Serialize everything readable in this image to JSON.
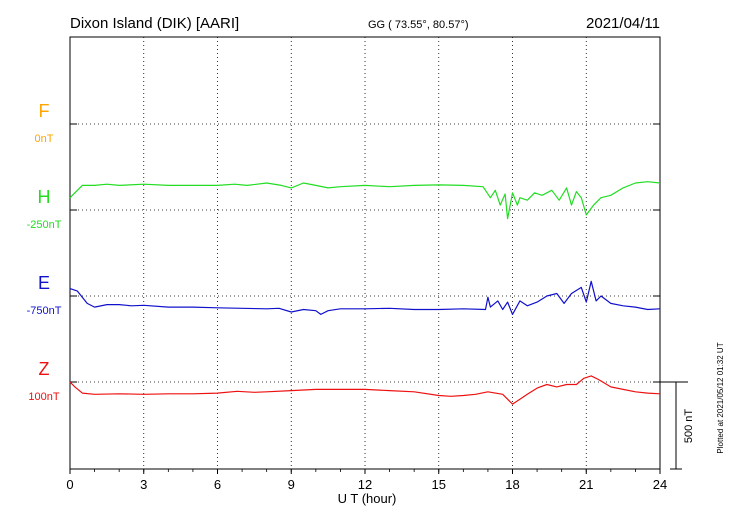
{
  "header": {
    "station": "Dixon Island (DIK)  [AARI]",
    "coords": "GG ( 73.55°,  80.57°)",
    "date": "2021/04/11"
  },
  "side_note": "Plotted at 2021/05/12 01:32 UT",
  "scale_label": "500 nT",
  "colors": {
    "F": "#ffa500",
    "H": "#22dd22",
    "E": "#1111cc",
    "Z": "#ee1111"
  },
  "chart_data": {
    "type": "line",
    "xlabel": "U T (hour)",
    "xlim": [
      0,
      24
    ],
    "x_ticks": [
      "0",
      "3",
      "6",
      "9",
      "12",
      "15",
      "18",
      "21",
      "24"
    ],
    "grid": true,
    "panel_spacing_nT": 350,
    "scale_bar_nT": 500,
    "panels": [
      {
        "name": "F",
        "offset_label": "0nT",
        "points": []
      },
      {
        "name": "H",
        "offset_label": "-250nT",
        "points": [
          [
            0,
            -300
          ],
          [
            0.5,
            -250
          ],
          [
            1,
            -250
          ],
          [
            1.5,
            -245
          ],
          [
            2,
            -250
          ],
          [
            3,
            -245
          ],
          [
            4,
            -250
          ],
          [
            5,
            -250
          ],
          [
            6,
            -250
          ],
          [
            6.7,
            -245
          ],
          [
            7.2,
            -250
          ],
          [
            8,
            -240
          ],
          [
            8.6,
            -250
          ],
          [
            9,
            -260
          ],
          [
            9.5,
            -240
          ],
          [
            10,
            -250
          ],
          [
            10.5,
            -260
          ],
          [
            11,
            -255
          ],
          [
            12,
            -250
          ],
          [
            13,
            -255
          ],
          [
            14,
            -250
          ],
          [
            15,
            -248
          ],
          [
            16,
            -250
          ],
          [
            16.8,
            -255
          ],
          [
            17.1,
            -300
          ],
          [
            17.3,
            -270
          ],
          [
            17.5,
            -330
          ],
          [
            17.7,
            -285
          ],
          [
            17.8,
            -385
          ],
          [
            18.0,
            -280
          ],
          [
            18.2,
            -330
          ],
          [
            18.3,
            -300
          ],
          [
            18.6,
            -310
          ],
          [
            18.9,
            -280
          ],
          [
            19.2,
            -290
          ],
          [
            19.6,
            -270
          ],
          [
            19.9,
            -310
          ],
          [
            20.2,
            -260
          ],
          [
            20.4,
            -330
          ],
          [
            20.6,
            -275
          ],
          [
            20.8,
            -300
          ],
          [
            21.0,
            -370
          ],
          [
            21.3,
            -330
          ],
          [
            21.6,
            -300
          ],
          [
            22,
            -290
          ],
          [
            22.5,
            -260
          ],
          [
            23,
            -240
          ],
          [
            23.5,
            -235
          ],
          [
            24,
            -240
          ]
        ]
      },
      {
        "name": "E",
        "offset_label": "-750nT",
        "points": [
          [
            0,
            -670
          ],
          [
            0.3,
            -680
          ],
          [
            0.7,
            -730
          ],
          [
            1,
            -745
          ],
          [
            1.5,
            -735
          ],
          [
            2,
            -735
          ],
          [
            2.5,
            -740
          ],
          [
            3,
            -738
          ],
          [
            4,
            -745
          ],
          [
            5,
            -745
          ],
          [
            6,
            -748
          ],
          [
            7,
            -750
          ],
          [
            8,
            -752
          ],
          [
            8.5,
            -750
          ],
          [
            9,
            -765
          ],
          [
            9.5,
            -755
          ],
          [
            10,
            -760
          ],
          [
            10.2,
            -775
          ],
          [
            10.5,
            -760
          ],
          [
            11,
            -752
          ],
          [
            12,
            -752
          ],
          [
            13,
            -750
          ],
          [
            14,
            -755
          ],
          [
            15,
            -755
          ],
          [
            16,
            -752
          ],
          [
            16.9,
            -755
          ],
          [
            17.0,
            -705
          ],
          [
            17.1,
            -745
          ],
          [
            17.4,
            -720
          ],
          [
            17.6,
            -755
          ],
          [
            17.8,
            -725
          ],
          [
            18.0,
            -775
          ],
          [
            18.3,
            -720
          ],
          [
            18.6,
            -740
          ],
          [
            19.0,
            -725
          ],
          [
            19.4,
            -700
          ],
          [
            19.8,
            -690
          ],
          [
            20.1,
            -730
          ],
          [
            20.4,
            -690
          ],
          [
            20.8,
            -665
          ],
          [
            21.0,
            -725
          ],
          [
            21.2,
            -640
          ],
          [
            21.4,
            -720
          ],
          [
            21.6,
            -700
          ],
          [
            22,
            -730
          ],
          [
            22.5,
            -740
          ],
          [
            23,
            -745
          ],
          [
            23.5,
            -755
          ],
          [
            24,
            -752
          ]
        ]
      },
      {
        "name": "Z",
        "offset_label": "100nT",
        "points": [
          [
            0,
            -1050
          ],
          [
            0.2,
            -1070
          ],
          [
            0.5,
            -1095
          ],
          [
            1,
            -1100
          ],
          [
            2,
            -1098
          ],
          [
            3,
            -1100
          ],
          [
            4,
            -1098
          ],
          [
            5,
            -1098
          ],
          [
            6,
            -1095
          ],
          [
            6.8,
            -1088
          ],
          [
            7.5,
            -1092
          ],
          [
            8,
            -1090
          ],
          [
            9,
            -1085
          ],
          [
            10,
            -1080
          ],
          [
            11,
            -1080
          ],
          [
            12,
            -1080
          ],
          [
            13,
            -1085
          ],
          [
            14,
            -1090
          ],
          [
            15,
            -1105
          ],
          [
            15.5,
            -1108
          ],
          [
            16,
            -1105
          ],
          [
            16.5,
            -1100
          ],
          [
            17.0,
            -1090
          ],
          [
            17.6,
            -1100
          ],
          [
            18.0,
            -1140
          ],
          [
            18.3,
            -1120
          ],
          [
            18.6,
            -1100
          ],
          [
            19.0,
            -1075
          ],
          [
            19.4,
            -1060
          ],
          [
            19.8,
            -1070
          ],
          [
            20.2,
            -1060
          ],
          [
            20.6,
            -1060
          ],
          [
            20.9,
            -1035
          ],
          [
            21.2,
            -1025
          ],
          [
            21.5,
            -1040
          ],
          [
            22,
            -1070
          ],
          [
            22.5,
            -1080
          ],
          [
            23,
            -1090
          ],
          [
            23.5,
            -1095
          ],
          [
            24,
            -1098
          ]
        ]
      }
    ]
  }
}
